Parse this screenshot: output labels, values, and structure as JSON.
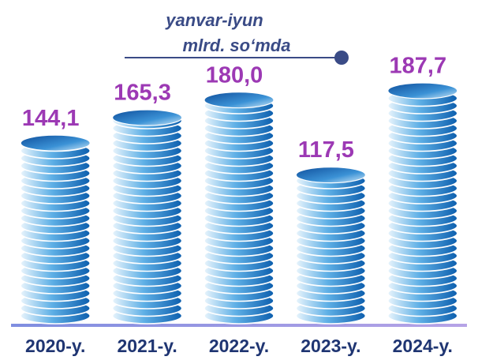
{
  "chart_data": {
    "type": "coin-stack",
    "subtitle": [
      "yanvar-iyun",
      "mlrd. so‘mda"
    ],
    "categories": [
      "2020-y.",
      "2021-y.",
      "2022-y.",
      "2023-y.",
      "2024-y."
    ],
    "values": [
      144.1,
      165.3,
      180.0,
      117.5,
      187.7
    ],
    "value_labels": [
      "144,1",
      "165,3",
      "180,0",
      "117,5",
      "187,7"
    ],
    "color": "#1a6fc0"
  }
}
